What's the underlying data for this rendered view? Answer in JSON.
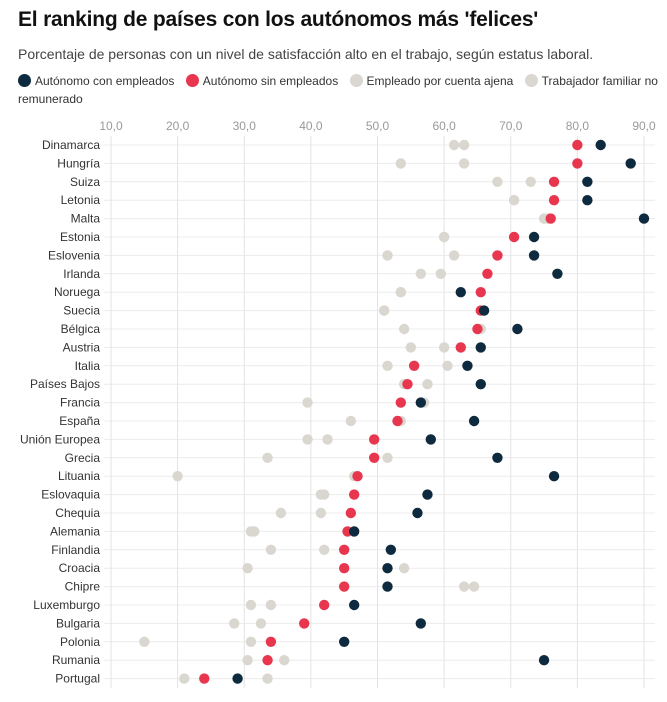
{
  "title": "El ranking de países con los autónomos más 'felices'",
  "subtitle": "Porcentaje de personas con un nivel de satisfacción alto en el trabajo, según estatus laboral.",
  "legend": [
    {
      "label": "Autónomo con empleados",
      "color": "#0e2a3f"
    },
    {
      "label": "Autónomo sin empleados",
      "color": "#e8364f"
    },
    {
      "label": "Empleado por cuenta ajena",
      "color": "#d9d7d0"
    },
    {
      "label": "Trabajador familiar no remunerado",
      "color": "#d9d7d0"
    }
  ],
  "chart_data": {
    "type": "scatter",
    "xlim": [
      10,
      90
    ],
    "x_ticks": [
      "10,0",
      "20,0",
      "30,0",
      "40,0",
      "50,0",
      "60,0",
      "70,0",
      "80,0",
      "90,0"
    ],
    "grid": true,
    "legend_position": "top",
    "categories": [
      "Dinamarca",
      "Hungría",
      "Suiza",
      "Letonia",
      "Malta",
      "Estonia",
      "Eslovenia",
      "Irlanda",
      "Noruega",
      "Suecia",
      "Bélgica",
      "Austria",
      "Italia",
      "Países Bajos",
      "Francia",
      "España",
      "Unión Europea",
      "Grecia",
      "Lituania",
      "Eslovaquia",
      "Chequia",
      "Alemania",
      "Finlandia",
      "Croacia",
      "Chipre",
      "Luxemburgo",
      "Bulgaria",
      "Polonia",
      "Rumania",
      "Portugal"
    ],
    "series": [
      {
        "name": "Trabajador familiar no remunerado",
        "color": "#d9d7d0",
        "values": [
          61.5,
          53.5,
          73,
          70.5,
          75,
          60,
          61.5,
          56.5,
          53.5,
          51,
          54,
          55,
          51.5,
          57.5,
          39.5,
          46,
          39.5,
          51.5,
          20,
          42,
          35.5,
          31.5,
          34,
          30.5,
          63,
          31,
          28.5,
          15,
          30.5,
          21
        ]
      },
      {
        "name": "Empleado por cuenta ajena",
        "color": "#d9d7d0",
        "values": [
          63,
          63,
          68,
          70.5,
          75.5,
          60,
          51.5,
          59.5,
          53.5,
          51,
          65.5,
          60,
          60.5,
          54,
          57,
          53.5,
          42.5,
          33.5,
          46.5,
          41.5,
          41.5,
          31,
          42,
          54,
          64.5,
          34,
          32.5,
          31,
          36,
          33.5
        ]
      },
      {
        "name": "Autónomo sin empleados",
        "color": "#e8364f",
        "values": [
          80,
          80,
          76.5,
          76.5,
          76,
          70.5,
          68,
          66.5,
          65.5,
          65.5,
          65,
          62.5,
          55.5,
          54.5,
          53.5,
          53,
          49.5,
          49.5,
          47,
          46.5,
          46,
          45.5,
          45,
          45,
          45,
          42,
          39,
          34,
          33.5,
          24
        ]
      },
      {
        "name": "Autónomo con empleados",
        "color": "#0e2a3f",
        "values": [
          83.5,
          88,
          81.5,
          81.5,
          90,
          73.5,
          73.5,
          77,
          62.5,
          66,
          71,
          65.5,
          63.5,
          65.5,
          56.5,
          64.5,
          58,
          68,
          76.5,
          57.5,
          56,
          46.5,
          52,
          51.5,
          51.5,
          46.5,
          56.5,
          45,
          75,
          29
        ]
      }
    ]
  }
}
